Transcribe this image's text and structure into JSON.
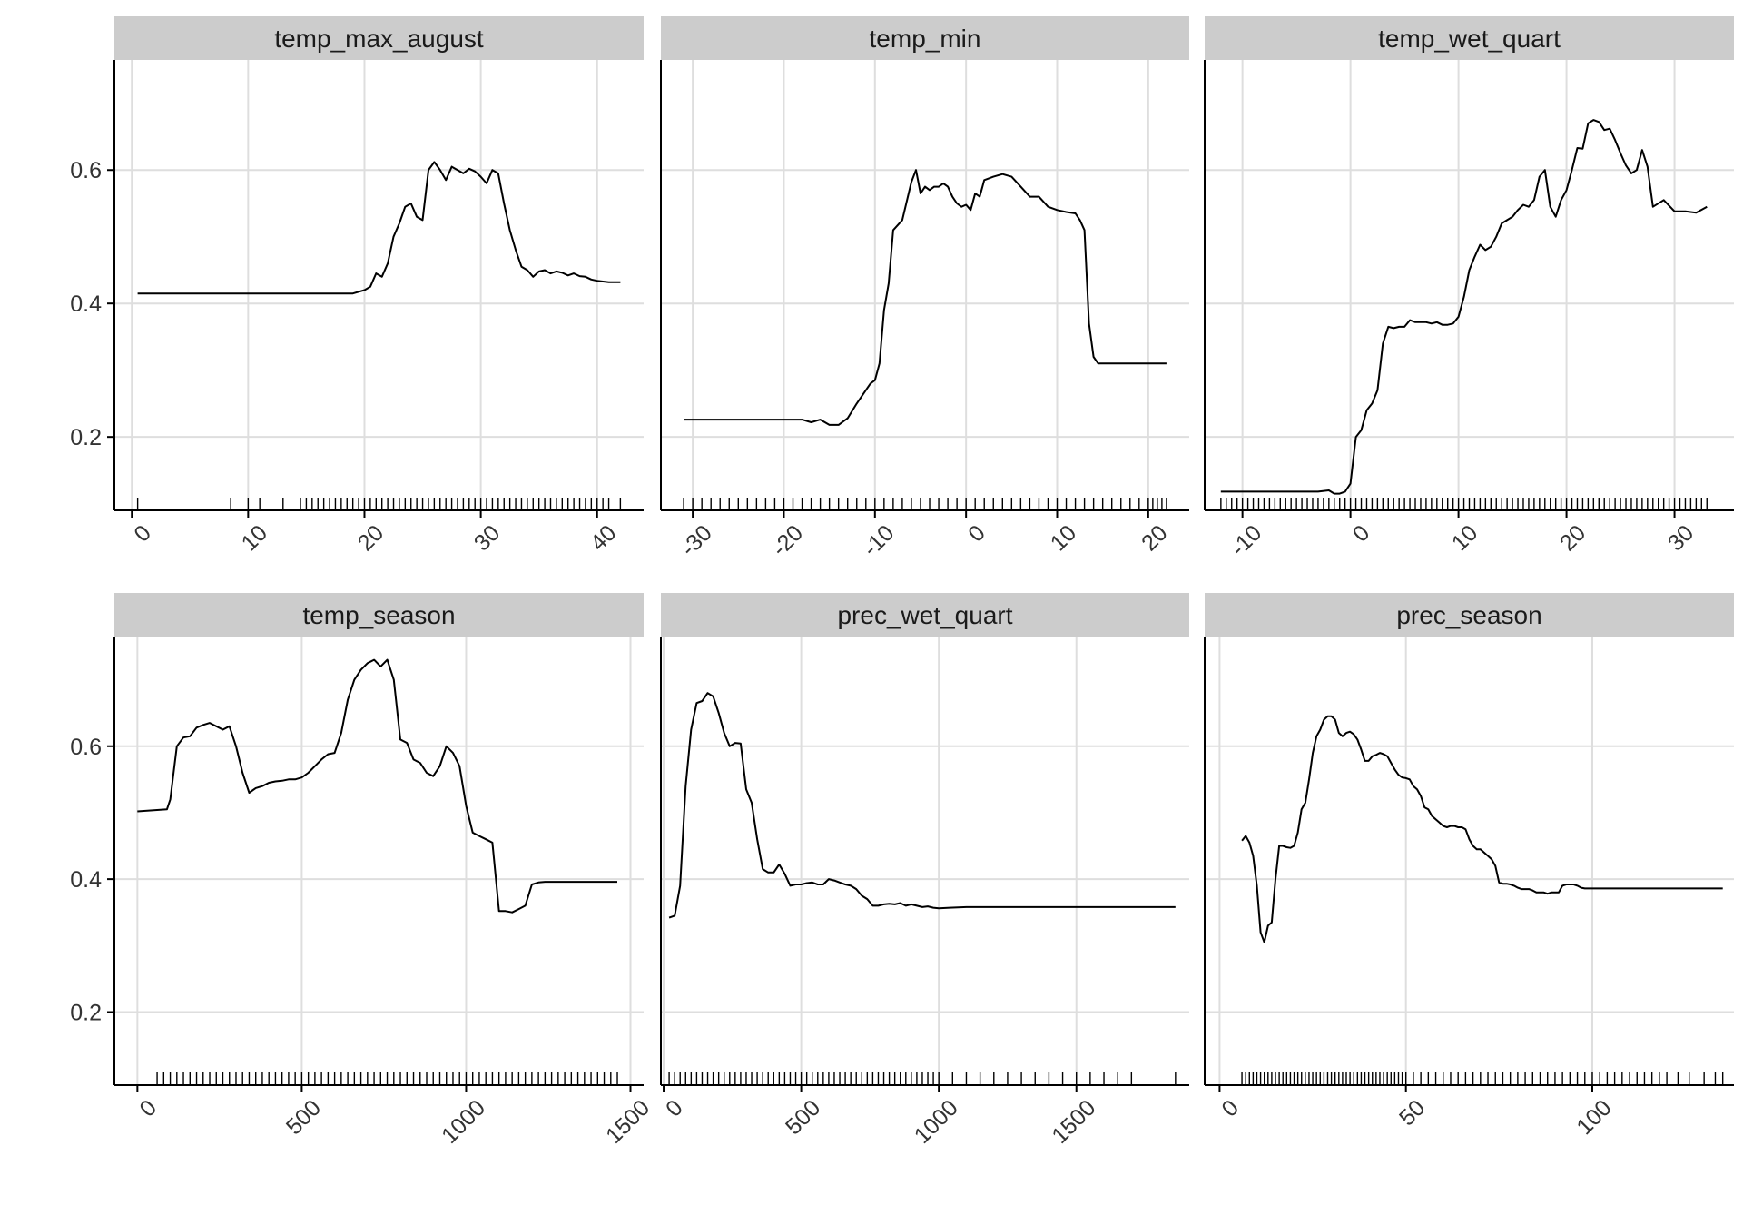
{
  "chart_data": [
    {
      "type": "line",
      "title": "temp_max_august",
      "xlim": [
        -1.5,
        44
      ],
      "ylim": [
        0.09,
        0.765
      ],
      "xticks": [
        0,
        10,
        20,
        30,
        40
      ],
      "yticks": [
        0.2,
        0.4,
        0.6
      ],
      "x": [
        0.5,
        19,
        20,
        20.5,
        21,
        21.5,
        22,
        22.5,
        23,
        23.5,
        24,
        24.5,
        25,
        25.5,
        26,
        26.5,
        27,
        27.5,
        28,
        28.5,
        29,
        29.5,
        30,
        30.5,
        31,
        31.5,
        32,
        32.5,
        33,
        33.5,
        34,
        34.5,
        35,
        35.5,
        36,
        36.5,
        37,
        37.5,
        38,
        38.5,
        39,
        39.5,
        40,
        40.5,
        41,
        42
      ],
      "y": [
        0.415,
        0.415,
        0.42,
        0.425,
        0.445,
        0.44,
        0.46,
        0.5,
        0.52,
        0.545,
        0.55,
        0.53,
        0.525,
        0.6,
        0.612,
        0.6,
        0.585,
        0.605,
        0.6,
        0.595,
        0.602,
        0.598,
        0.59,
        0.58,
        0.6,
        0.595,
        0.55,
        0.51,
        0.48,
        0.455,
        0.45,
        0.44,
        0.448,
        0.45,
        0.445,
        0.448,
        0.446,
        0.442,
        0.445,
        0.441,
        0.44,
        0.436,
        0.434,
        0.433,
        0.432,
        0.432
      ],
      "rug_ticks": [
        0.5,
        8.5,
        10,
        11,
        13,
        14.5,
        15,
        15.5,
        16,
        16.5,
        17,
        17.5,
        18,
        18.5,
        19,
        19.5,
        20,
        20.5,
        21,
        21.5,
        22,
        22.5,
        23,
        23.5,
        24,
        24.5,
        25,
        25.5,
        26,
        26.5,
        27,
        27.5,
        28,
        28.5,
        29,
        29.5,
        30,
        30.5,
        31,
        31.5,
        32,
        32.5,
        33,
        33.5,
        34,
        34.5,
        35,
        35.5,
        36,
        36.5,
        37,
        37.5,
        38,
        38.5,
        39,
        39.5,
        40,
        40.5,
        41,
        42
      ]
    },
    {
      "type": "line",
      "title": "temp_min",
      "xlim": [
        -33.5,
        24.5
      ],
      "ylim": [
        0.09,
        0.765
      ],
      "xticks": [
        -30,
        -20,
        -10,
        0,
        10,
        20
      ],
      "yticks": [
        0.2,
        0.4,
        0.6
      ],
      "x": [
        -31,
        -18,
        -17,
        -16,
        -15,
        -14,
        -13,
        -12,
        -11,
        -10.5,
        -10,
        -9.5,
        -9,
        -8.5,
        -8,
        -7,
        -6,
        -5.5,
        -5,
        -4.5,
        -4,
        -3.5,
        -3,
        -2.5,
        -2,
        -1.5,
        -1,
        -0.5,
        0,
        0.5,
        1,
        1.5,
        2,
        3,
        4,
        5,
        6,
        7,
        8,
        9,
        10,
        11,
        12,
        12.5,
        13,
        13.5,
        14,
        14.5,
        15,
        16,
        17,
        18,
        19,
        20,
        21,
        22
      ],
      "y": [
        0.226,
        0.226,
        0.222,
        0.226,
        0.218,
        0.218,
        0.228,
        0.25,
        0.27,
        0.28,
        0.285,
        0.31,
        0.39,
        0.43,
        0.51,
        0.525,
        0.582,
        0.6,
        0.565,
        0.575,
        0.57,
        0.575,
        0.575,
        0.58,
        0.575,
        0.56,
        0.55,
        0.545,
        0.548,
        0.54,
        0.565,
        0.56,
        0.585,
        0.59,
        0.594,
        0.59,
        0.575,
        0.56,
        0.56,
        0.545,
        0.54,
        0.537,
        0.535,
        0.525,
        0.51,
        0.37,
        0.32,
        0.31,
        0.31,
        0.31,
        0.31,
        0.31,
        0.31,
        0.31,
        0.31,
        0.31
      ],
      "rug_ticks": [
        -31,
        -30,
        -29,
        -28,
        -27,
        -26,
        -25,
        -24,
        -23,
        -22,
        -21,
        -20,
        -19,
        -18,
        -17,
        -16,
        -15,
        -14,
        -13,
        -12,
        -11,
        -10,
        -9,
        -8,
        -7,
        -6,
        -5,
        -4,
        -3,
        -2,
        -1,
        0,
        1,
        2,
        3,
        4,
        5,
        6,
        7,
        8,
        9,
        10,
        11,
        12,
        13,
        14,
        15,
        16,
        17,
        18,
        19,
        20,
        20.5,
        21,
        21.5,
        22
      ]
    },
    {
      "type": "line",
      "title": "temp_wet_quart",
      "xlim": [
        -13.5,
        35.5
      ],
      "ylim": [
        0.09,
        0.765
      ],
      "xticks": [
        -10,
        0,
        10,
        20,
        30
      ],
      "yticks": [
        0.2,
        0.4,
        0.6
      ],
      "x": [
        -12,
        -3,
        -2,
        -1.5,
        -1,
        -0.5,
        0,
        0.5,
        1,
        1.5,
        2,
        2.5,
        3,
        3.5,
        4,
        4.5,
        5,
        5.5,
        6,
        6.5,
        7,
        7.5,
        8,
        8.5,
        9,
        9.5,
        10,
        10.5,
        11,
        11.5,
        12,
        12.5,
        13,
        13.5,
        14,
        14.5,
        15,
        15.5,
        16,
        16.5,
        17,
        17.5,
        18,
        18.5,
        19,
        19.5,
        20,
        20.5,
        21,
        21.5,
        22,
        22.5,
        23,
        23.5,
        24,
        24.5,
        25,
        25.5,
        26,
        26.5,
        27,
        27.5,
        28,
        29,
        30,
        31,
        32,
        33
      ],
      "y": [
        0.118,
        0.118,
        0.12,
        0.115,
        0.115,
        0.118,
        0.13,
        0.2,
        0.21,
        0.24,
        0.25,
        0.27,
        0.34,
        0.365,
        0.363,
        0.365,
        0.365,
        0.375,
        0.372,
        0.372,
        0.372,
        0.37,
        0.372,
        0.368,
        0.368,
        0.37,
        0.38,
        0.41,
        0.45,
        0.47,
        0.488,
        0.48,
        0.485,
        0.5,
        0.52,
        0.525,
        0.53,
        0.54,
        0.548,
        0.545,
        0.555,
        0.59,
        0.6,
        0.545,
        0.53,
        0.555,
        0.57,
        0.6,
        0.633,
        0.632,
        0.67,
        0.675,
        0.672,
        0.66,
        0.662,
        0.645,
        0.625,
        0.607,
        0.595,
        0.6,
        0.63,
        0.605,
        0.545,
        0.555,
        0.538,
        0.538,
        0.536,
        0.545
      ]
    },
    {
      "type": "line",
      "title": "temp_season",
      "xlim": [
        -70,
        1540
      ],
      "ylim": [
        0.09,
        0.765
      ],
      "xticks": [
        0,
        500,
        1000,
        1500
      ],
      "yticks": [
        0.2,
        0.4,
        0.6
      ],
      "x": [
        0,
        90,
        100,
        120,
        140,
        160,
        180,
        200,
        220,
        240,
        260,
        280,
        300,
        320,
        340,
        360,
        380,
        400,
        420,
        440,
        460,
        480,
        500,
        520,
        540,
        560,
        580,
        600,
        620,
        640,
        660,
        680,
        700,
        720,
        740,
        760,
        780,
        800,
        820,
        840,
        860,
        880,
        900,
        920,
        940,
        960,
        980,
        1000,
        1020,
        1040,
        1060,
        1080,
        1100,
        1120,
        1140,
        1160,
        1180,
        1200,
        1220,
        1240,
        1460
      ],
      "y": [
        0.502,
        0.505,
        0.52,
        0.6,
        0.613,
        0.615,
        0.628,
        0.632,
        0.635,
        0.63,
        0.625,
        0.63,
        0.6,
        0.56,
        0.53,
        0.537,
        0.54,
        0.545,
        0.547,
        0.548,
        0.55,
        0.55,
        0.553,
        0.56,
        0.57,
        0.58,
        0.588,
        0.59,
        0.62,
        0.67,
        0.7,
        0.715,
        0.725,
        0.73,
        0.72,
        0.73,
        0.7,
        0.61,
        0.605,
        0.58,
        0.575,
        0.56,
        0.555,
        0.57,
        0.6,
        0.59,
        0.57,
        0.51,
        0.47,
        0.465,
        0.46,
        0.455,
        0.352,
        0.352,
        0.35,
        0.355,
        0.36,
        0.392,
        0.395,
        0.396,
        0.396
      ],
      "rug_ticks": [
        60,
        80,
        100,
        120,
        140,
        160,
        180,
        200,
        220,
        240,
        260,
        280,
        300,
        320,
        340,
        360,
        380,
        400,
        420,
        440,
        460,
        480,
        500,
        520,
        540,
        560,
        580,
        600,
        620,
        640,
        660,
        680,
        700,
        720,
        740,
        760,
        780,
        800,
        820,
        840,
        860,
        880,
        900,
        920,
        940,
        960,
        980,
        1000,
        1020,
        1040,
        1060,
        1080,
        1100,
        1120,
        1140,
        1160,
        1180,
        1200,
        1220,
        1240,
        1260,
        1280,
        1300,
        1320,
        1340,
        1360,
        1380,
        1400,
        1420,
        1440,
        1460
      ]
    },
    {
      "type": "line",
      "title": "prec_wet_quart",
      "xlim": [
        -10,
        1910
      ],
      "ylim": [
        0.09,
        0.765
      ],
      "xticks": [
        0,
        500,
        1000,
        1500
      ],
      "yticks": [
        0.2,
        0.4,
        0.6
      ],
      "x": [
        20,
        40,
        60,
        80,
        100,
        120,
        140,
        160,
        180,
        200,
        220,
        240,
        260,
        280,
        300,
        320,
        340,
        360,
        380,
        400,
        420,
        440,
        460,
        480,
        500,
        520,
        540,
        560,
        580,
        600,
        620,
        640,
        660,
        680,
        700,
        720,
        740,
        760,
        780,
        800,
        820,
        840,
        860,
        880,
        900,
        920,
        940,
        960,
        980,
        1000,
        1040,
        1100,
        1150,
        1200,
        1860
      ],
      "y": [
        0.342,
        0.345,
        0.39,
        0.54,
        0.625,
        0.665,
        0.668,
        0.68,
        0.675,
        0.65,
        0.62,
        0.6,
        0.605,
        0.604,
        0.535,
        0.515,
        0.46,
        0.415,
        0.41,
        0.41,
        0.422,
        0.408,
        0.39,
        0.392,
        0.392,
        0.394,
        0.395,
        0.392,
        0.392,
        0.4,
        0.398,
        0.395,
        0.392,
        0.39,
        0.385,
        0.375,
        0.37,
        0.36,
        0.36,
        0.362,
        0.363,
        0.362,
        0.364,
        0.36,
        0.362,
        0.36,
        0.358,
        0.359,
        0.357,
        0.356,
        0.357,
        0.358,
        0.358,
        0.358,
        0.358
      ],
      "rug_ticks": [
        20,
        40,
        60,
        80,
        100,
        120,
        140,
        160,
        180,
        200,
        220,
        240,
        260,
        280,
        300,
        320,
        340,
        360,
        380,
        400,
        420,
        440,
        460,
        480,
        500,
        520,
        540,
        560,
        580,
        600,
        620,
        640,
        660,
        680,
        700,
        720,
        740,
        760,
        780,
        800,
        820,
        840,
        860,
        880,
        900,
        920,
        940,
        960,
        980,
        1000,
        1050,
        1100,
        1150,
        1200,
        1250,
        1300,
        1350,
        1400,
        1450,
        1500,
        1550,
        1600,
        1650,
        1700,
        1860
      ]
    },
    {
      "type": "line",
      "title": "prec_season",
      "xlim": [
        -4,
        138
      ],
      "ylim": [
        0.09,
        0.765
      ],
      "xticks": [
        0,
        50,
        100
      ],
      "yticks": [
        0.2,
        0.4,
        0.6
      ],
      "x": [
        6,
        7,
        8,
        9,
        10,
        11,
        12,
        13,
        14,
        15,
        16,
        17,
        18,
        19,
        20,
        21,
        22,
        23,
        24,
        25,
        26,
        27,
        28,
        29,
        30,
        31,
        32,
        33,
        34,
        35,
        36,
        37,
        38,
        39,
        40,
        41,
        42,
        43,
        44,
        45,
        46,
        47,
        48,
        49,
        50,
        51,
        52,
        53,
        54,
        55,
        56,
        57,
        58,
        59,
        60,
        61,
        62,
        63,
        64,
        65,
        66,
        67,
        68,
        69,
        70,
        71,
        72,
        73,
        74,
        75,
        76,
        77,
        78,
        79,
        80,
        81,
        82,
        83,
        84,
        85,
        86,
        87,
        88,
        89,
        90,
        91,
        92,
        93,
        94,
        95,
        96,
        97,
        98,
        99,
        100,
        101,
        102,
        103,
        104,
        105,
        106,
        107,
        108,
        109,
        110,
        111,
        112,
        113,
        114,
        115,
        116,
        117,
        118,
        119,
        120,
        125,
        130,
        135
      ],
      "y": [
        0.458,
        0.465,
        0.455,
        0.435,
        0.39,
        0.32,
        0.305,
        0.33,
        0.335,
        0.4,
        0.45,
        0.45,
        0.448,
        0.447,
        0.45,
        0.47,
        0.505,
        0.515,
        0.55,
        0.59,
        0.615,
        0.625,
        0.64,
        0.645,
        0.645,
        0.64,
        0.62,
        0.615,
        0.62,
        0.622,
        0.618,
        0.61,
        0.595,
        0.578,
        0.578,
        0.585,
        0.587,
        0.59,
        0.588,
        0.585,
        0.575,
        0.565,
        0.557,
        0.553,
        0.552,
        0.55,
        0.54,
        0.535,
        0.525,
        0.508,
        0.505,
        0.495,
        0.49,
        0.485,
        0.48,
        0.478,
        0.48,
        0.48,
        0.478,
        0.478,
        0.475,
        0.46,
        0.45,
        0.445,
        0.445,
        0.44,
        0.435,
        0.43,
        0.42,
        0.395,
        0.393,
        0.393,
        0.392,
        0.39,
        0.387,
        0.385,
        0.385,
        0.385,
        0.383,
        0.38,
        0.38,
        0.38,
        0.378,
        0.38,
        0.38,
        0.38,
        0.39,
        0.392,
        0.392,
        0.392,
        0.39,
        0.387,
        0.386,
        0.386,
        0.386,
        0.386,
        0.386,
        0.386,
        0.386,
        0.386,
        0.386,
        0.386,
        0.386,
        0.386,
        0.386,
        0.386,
        0.386,
        0.386,
        0.386,
        0.386,
        0.386,
        0.386,
        0.386,
        0.386,
        0.386,
        0.386,
        0.386,
        0.386
      ],
      "rug_ticks": [
        6,
        7,
        8,
        9,
        10,
        11,
        12,
        13,
        14,
        15,
        16,
        17,
        18,
        19,
        20,
        21,
        22,
        23,
        24,
        25,
        26,
        27,
        28,
        29,
        30,
        31,
        32,
        33,
        34,
        35,
        36,
        37,
        38,
        39,
        40,
        41,
        42,
        43,
        44,
        45,
        46,
        47,
        48,
        49,
        50,
        52,
        54,
        56,
        58,
        60,
        62,
        64,
        66,
        68,
        70,
        72,
        74,
        76,
        78,
        80,
        82,
        84,
        86,
        88,
        90,
        92,
        94,
        96,
        98,
        100,
        102,
        104,
        106,
        108,
        110,
        112,
        114,
        116,
        118,
        120,
        123,
        126,
        130,
        133,
        135
      ]
    }
  ]
}
